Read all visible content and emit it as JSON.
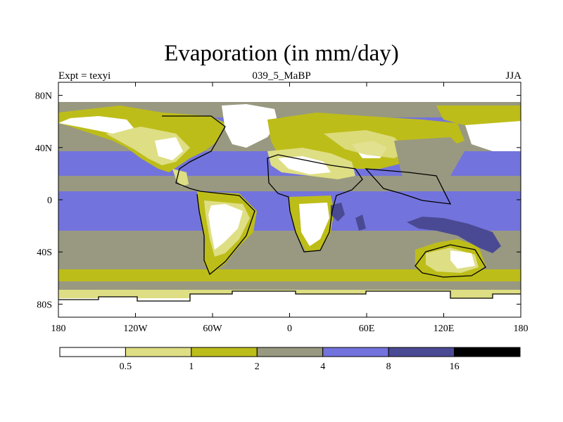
{
  "chart_data": {
    "type": "heatmap",
    "title": "Evaporation (in mm/day)",
    "left_string": "Expt = texyi",
    "center_string": "039_5_MaBP",
    "right_string": "JJA",
    "x_ticks": [
      "180",
      "120W",
      "60W",
      "0",
      "60E",
      "120E",
      "180"
    ],
    "y_ticks": [
      "80N",
      "40N",
      "0",
      "40S",
      "80S"
    ],
    "xlim": [
      -180,
      180
    ],
    "ylim": [
      -90,
      90
    ],
    "colorbar": {
      "levels": [
        "0.5",
        "1",
        "2",
        "4",
        "8",
        "16"
      ],
      "colors": [
        "#ffffff",
        "#dede84",
        "#bdbd19",
        "#999981",
        "#7373dd",
        "#4a4a94",
        "#000000"
      ]
    }
  }
}
